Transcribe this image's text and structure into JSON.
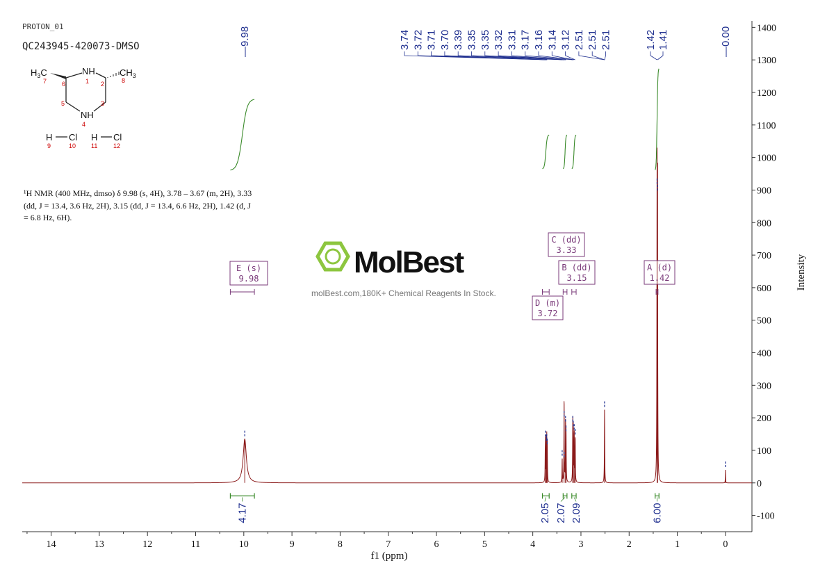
{
  "header": {
    "experiment": "PROTON_01",
    "sample_id": "QC243945-420073-DMSO"
  },
  "structure": {
    "labels": {
      "h3c": "H3C",
      "nh_top": "NH",
      "ch3": "CH3",
      "nh_bottom": "NH",
      "n7": "7",
      "n6": "6",
      "n1": "1",
      "n2": "2",
      "n8": "8",
      "n5": "5",
      "n3": "3",
      "n4": "4",
      "hcl1_h": "H",
      "hcl1_cl": "Cl",
      "hcl2_h": "H",
      "hcl2_cl": "Cl",
      "n9": "9",
      "n10": "10",
      "n11": "11",
      "n12": "12"
    },
    "atom_color": "#cc0000"
  },
  "nmr_description": {
    "line1": "¹H NMR (400 MHz, dmso) δ 9.98 (s, 4H), 3.78 – 3.67 (m, 2H), 3.33",
    "line2": "(dd, J = 13.4, 3.6 Hz, 2H), 3.15 (dd, J = 13.4, 6.6 Hz, 2H), 1.42 (d, J",
    "line3": "= 6.8 Hz, 6H)."
  },
  "watermark": {
    "brand": "MolBest",
    "tagline": "molBest.com,180K+ Chemical Reagents In Stock.",
    "brand_color": "#8dc63f"
  },
  "chart_data": {
    "type": "line",
    "title": "",
    "xlabel": "f1 (ppm)",
    "ylabel": "Intensity",
    "xlim": [
      14.6,
      -0.55
    ],
    "ylim": [
      -150,
      1420
    ],
    "x_ticks": [
      14,
      13,
      12,
      11,
      10,
      9,
      8,
      7,
      6,
      5,
      4,
      3,
      2,
      1,
      0
    ],
    "y_ticks": [
      -100,
      0,
      100,
      200,
      300,
      400,
      500,
      600,
      700,
      800,
      900,
      1000,
      1100,
      1200,
      1300,
      1400
    ],
    "grid": false,
    "colors": {
      "spectrum": "#8b1a1a",
      "peak_labels": "#1f2f8f",
      "integrals": "#3a8a2a",
      "multiplets": "#7a3a7a"
    },
    "peaks": [
      {
        "shift": 9.98,
        "height": 135,
        "width": 0.04
      },
      {
        "shift": 3.74,
        "height": 135,
        "width": 0.004
      },
      {
        "shift": 3.72,
        "height": 120,
        "width": 0.004
      },
      {
        "shift": 3.71,
        "height": 125,
        "width": 0.004
      },
      {
        "shift": 3.7,
        "height": 110,
        "width": 0.004
      },
      {
        "shift": 3.39,
        "height": 75,
        "width": 0.004
      },
      {
        "shift": 3.35,
        "height": 70,
        "width": 0.004
      },
      {
        "shift": 3.35,
        "height": 195,
        "width": 0.004
      },
      {
        "shift": 3.32,
        "height": 180,
        "width": 0.004
      },
      {
        "shift": 3.31,
        "height": 150,
        "width": 0.004
      },
      {
        "shift": 3.17,
        "height": 180,
        "width": 0.004
      },
      {
        "shift": 3.16,
        "height": 165,
        "width": 0.004
      },
      {
        "shift": 3.14,
        "height": 155,
        "width": 0.004
      },
      {
        "shift": 3.12,
        "height": 140,
        "width": 0.004
      },
      {
        "shift": 2.51,
        "height": 225,
        "width": 0.004
      },
      {
        "shift": 1.42,
        "height": 910,
        "width": 0.004
      },
      {
        "shift": 1.41,
        "height": 890,
        "width": 0.004
      },
      {
        "shift": 0.0,
        "height": 40,
        "width": 0.003
      }
    ],
    "peak_labels": [
      "3.74",
      "3.72",
      "3.71",
      "3.70",
      "3.39",
      "3.35",
      "3.35",
      "3.32",
      "3.31",
      "3.17",
      "3.16",
      "3.14",
      "3.12",
      "2.51",
      "2.51",
      "2.51",
      "1.42",
      "1.41"
    ],
    "peak_label_single_left": "9.98",
    "peak_label_single_right": "0.00",
    "integrals": [
      {
        "from": 10.28,
        "to": 9.78,
        "value": "4.17",
        "y_low": 960,
        "y_high": 1180
      },
      {
        "from": 3.8,
        "to": 3.66,
        "value": "2.05",
        "y_low": 965,
        "y_high": 1070
      },
      {
        "from": 3.37,
        "to": 3.29,
        "value": "2.07",
        "y_low": 965,
        "y_high": 1070
      },
      {
        "from": 3.19,
        "to": 3.1,
        "value": "2.09",
        "y_low": 965,
        "y_high": 1070
      },
      {
        "from": 1.46,
        "to": 1.38,
        "value": "6.00",
        "y_low": 960,
        "y_high": 1275
      }
    ],
    "multiplets": [
      {
        "letter": "E",
        "type": "(s)",
        "shift": "9.98"
      },
      {
        "letter": "C",
        "type": "(dd)",
        "shift": "3.33"
      },
      {
        "letter": "B",
        "type": "(dd)",
        "shift": "3.15"
      },
      {
        "letter": "D",
        "type": "(m)",
        "shift": "3.72"
      },
      {
        "letter": "A",
        "type": "(d)",
        "shift": "1.42"
      }
    ]
  }
}
